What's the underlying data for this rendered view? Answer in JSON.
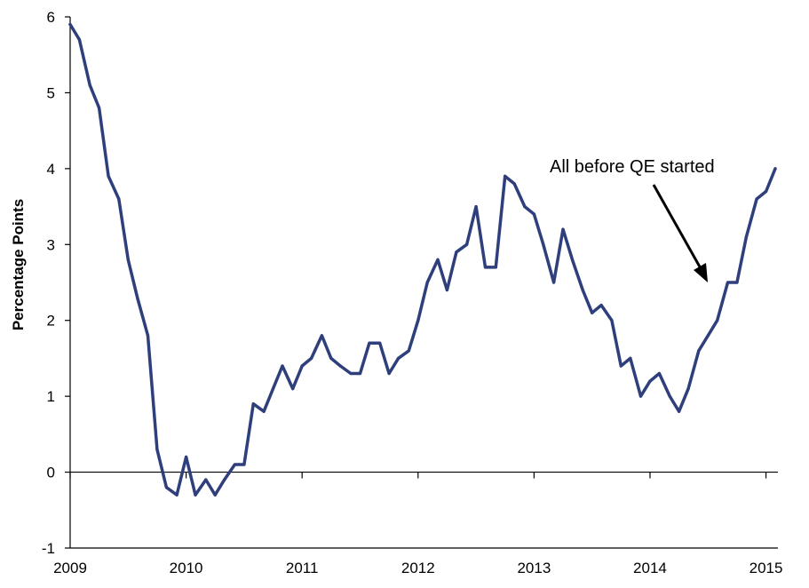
{
  "chart_data": {
    "type": "line",
    "title": "",
    "xlabel": "",
    "ylabel": "Percentage Points",
    "xlim": [
      2009,
      2015.08
    ],
    "ylim": [
      -1,
      6
    ],
    "grid": false,
    "legend": "none",
    "x_ticks": [
      "2009",
      "2010",
      "2011",
      "2012",
      "2013",
      "2014",
      "2015"
    ],
    "y_ticks": [
      "-1",
      "0",
      "1",
      "2",
      "3",
      "4",
      "5",
      "6"
    ],
    "annotation": "All before QE started",
    "line_color": "#2E3F7C",
    "series": [
      {
        "points": [
          [
            2009.0,
            5.9
          ],
          [
            2009.08,
            5.7
          ],
          [
            2009.17,
            5.1
          ],
          [
            2009.25,
            4.8
          ],
          [
            2009.33,
            3.9
          ],
          [
            2009.42,
            3.6
          ],
          [
            2009.5,
            2.8
          ],
          [
            2009.58,
            2.3
          ],
          [
            2009.67,
            1.8
          ],
          [
            2009.75,
            0.3
          ],
          [
            2009.83,
            -0.2
          ],
          [
            2009.92,
            -0.3
          ],
          [
            2010.0,
            0.2
          ],
          [
            2010.08,
            -0.3
          ],
          [
            2010.17,
            -0.1
          ],
          [
            2010.25,
            -0.3
          ],
          [
            2010.33,
            -0.1
          ],
          [
            2010.42,
            0.1
          ],
          [
            2010.5,
            0.1
          ],
          [
            2010.58,
            0.9
          ],
          [
            2010.67,
            0.8
          ],
          [
            2010.75,
            1.1
          ],
          [
            2010.83,
            1.4
          ],
          [
            2010.92,
            1.1
          ],
          [
            2011.0,
            1.4
          ],
          [
            2011.08,
            1.5
          ],
          [
            2011.17,
            1.8
          ],
          [
            2011.25,
            1.5
          ],
          [
            2011.33,
            1.4
          ],
          [
            2011.42,
            1.3
          ],
          [
            2011.5,
            1.3
          ],
          [
            2011.58,
            1.7
          ],
          [
            2011.67,
            1.7
          ],
          [
            2011.75,
            1.3
          ],
          [
            2011.83,
            1.5
          ],
          [
            2011.92,
            1.6
          ],
          [
            2012.0,
            2.0
          ],
          [
            2012.08,
            2.5
          ],
          [
            2012.17,
            2.8
          ],
          [
            2012.25,
            2.4
          ],
          [
            2012.33,
            2.9
          ],
          [
            2012.42,
            3.0
          ],
          [
            2012.5,
            3.5
          ],
          [
            2012.58,
            2.7
          ],
          [
            2012.67,
            2.7
          ],
          [
            2012.75,
            3.9
          ],
          [
            2012.83,
            3.8
          ],
          [
            2012.92,
            3.5
          ],
          [
            2013.0,
            3.4
          ],
          [
            2013.08,
            3.0
          ],
          [
            2013.17,
            2.5
          ],
          [
            2013.25,
            3.2
          ],
          [
            2013.33,
            2.8
          ],
          [
            2013.42,
            2.4
          ],
          [
            2013.5,
            2.1
          ],
          [
            2013.58,
            2.2
          ],
          [
            2013.67,
            2.0
          ],
          [
            2013.75,
            1.4
          ],
          [
            2013.83,
            1.5
          ],
          [
            2013.92,
            1.0
          ],
          [
            2014.0,
            1.2
          ],
          [
            2014.08,
            1.3
          ],
          [
            2014.17,
            1.0
          ],
          [
            2014.25,
            0.8
          ],
          [
            2014.33,
            1.1
          ],
          [
            2014.42,
            1.6
          ],
          [
            2014.5,
            1.8
          ],
          [
            2014.58,
            2.0
          ],
          [
            2014.67,
            2.5
          ],
          [
            2014.75,
            2.5
          ],
          [
            2014.83,
            3.1
          ],
          [
            2014.92,
            3.6
          ],
          [
            2015.0,
            3.7
          ],
          [
            2015.08,
            4.0
          ]
        ]
      }
    ]
  }
}
